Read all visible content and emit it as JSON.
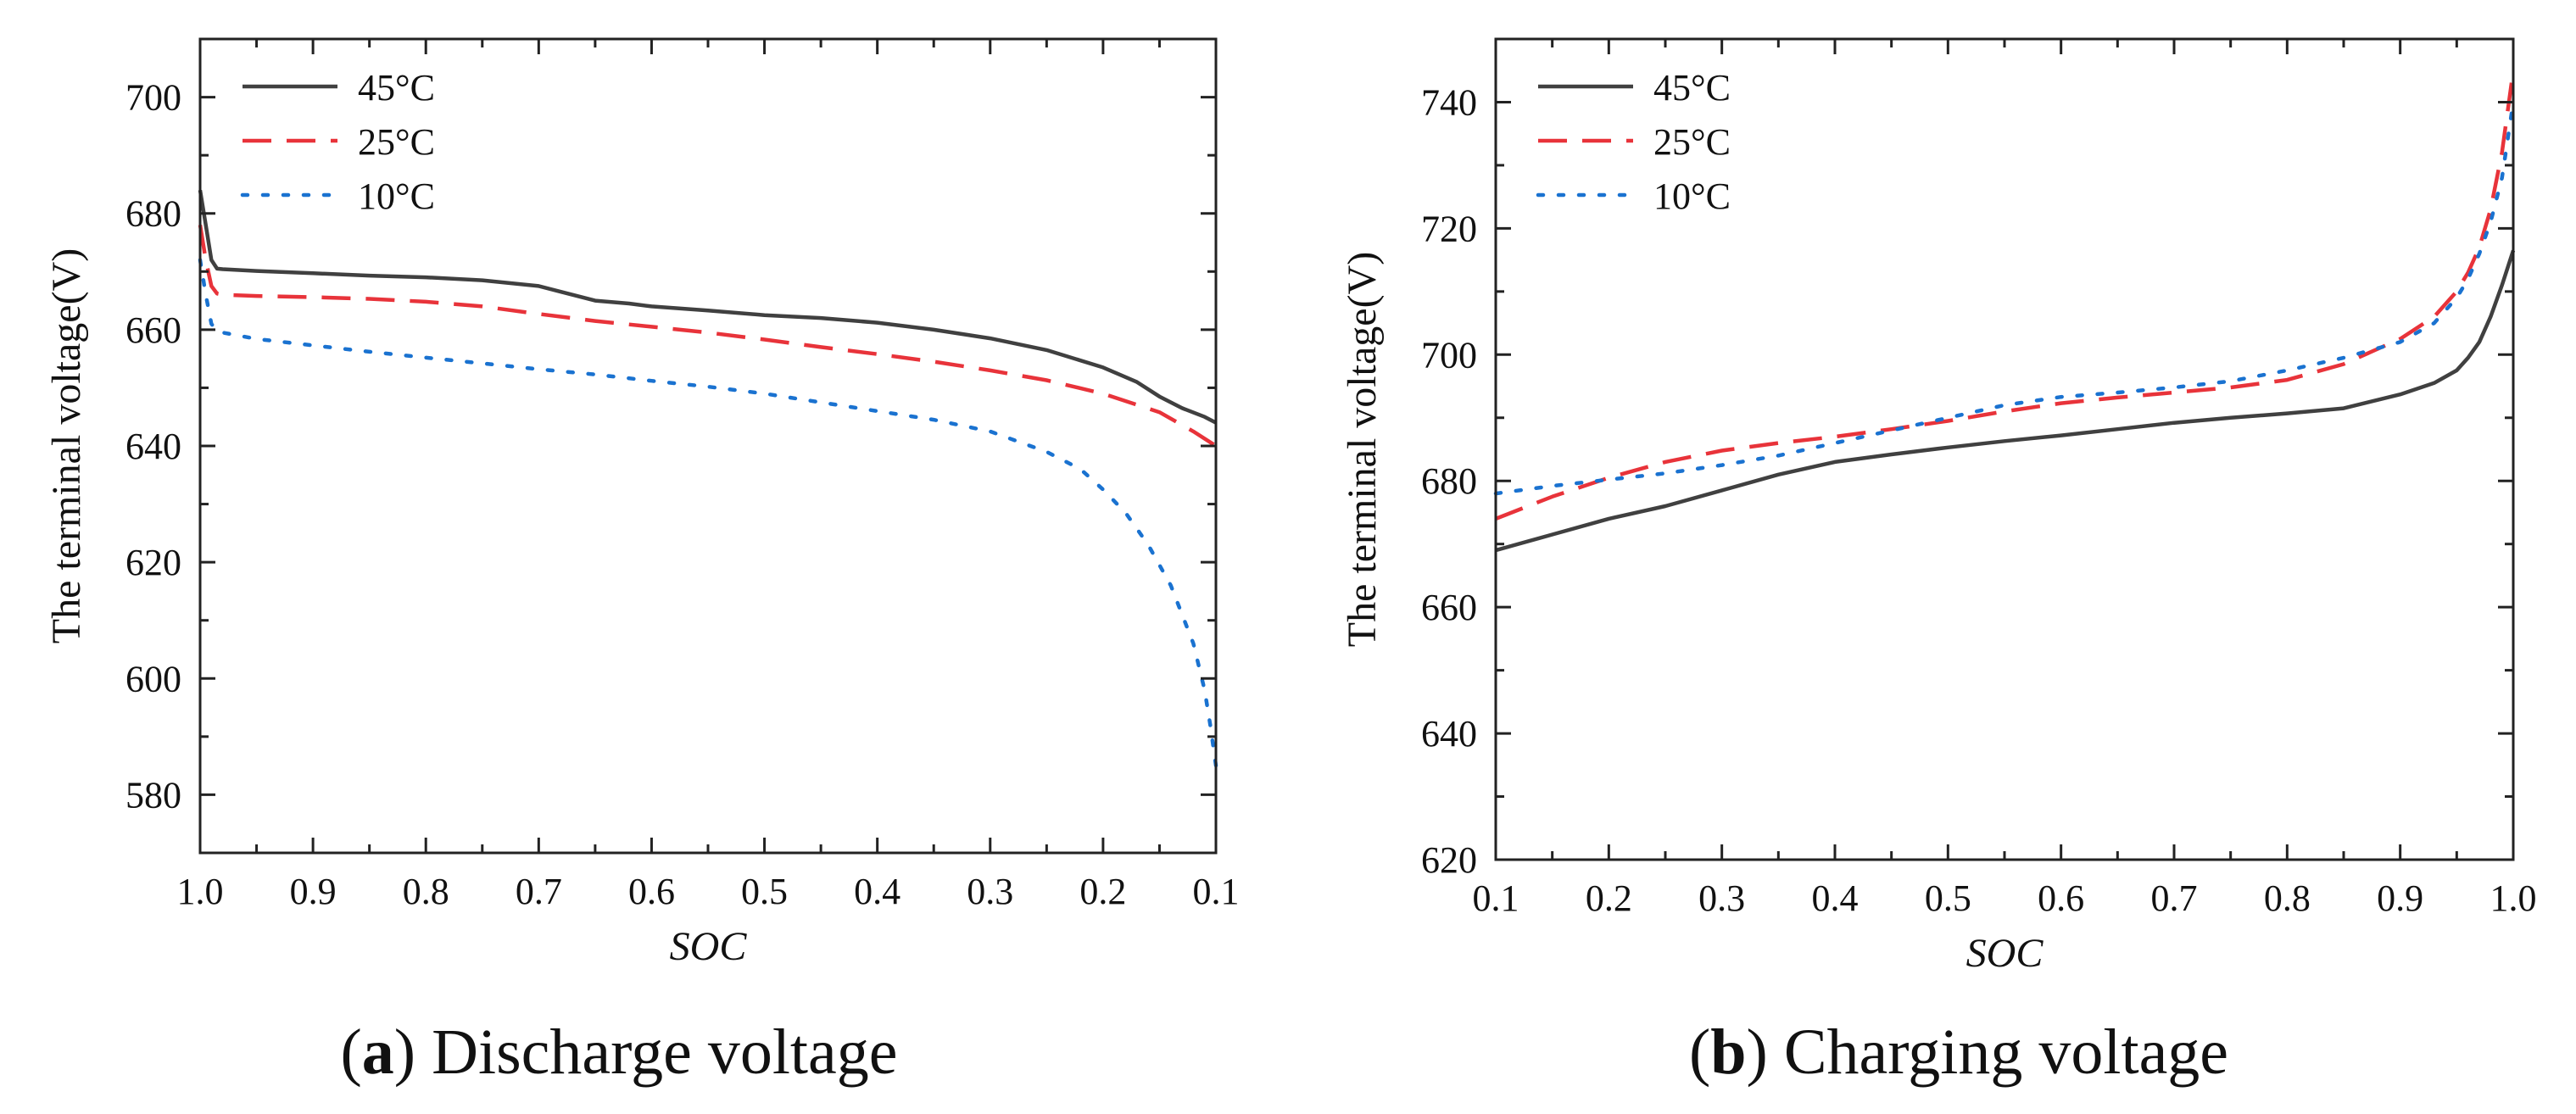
{
  "chart_data": [
    {
      "type": "line",
      "panel": "a",
      "caption_letter": "a",
      "caption_text": "Discharge voltage",
      "xlabel": "SOC",
      "ylabel": "The terminal voltage(V)",
      "xlim": [
        1.0,
        0.1
      ],
      "ylim": [
        570,
        710
      ],
      "xticks": [
        "1.0",
        "0.9",
        "0.8",
        "0.7",
        "0.6",
        "0.5",
        "0.4",
        "0.3",
        "0.2",
        "0.1"
      ],
      "yticks": [
        "580",
        "600",
        "620",
        "640",
        "660",
        "680",
        "700"
      ],
      "legend_position": "top-left",
      "series": [
        {
          "name": "45°C",
          "color": "#404040",
          "style": "solid",
          "x": [
            1.0,
            0.995,
            0.99,
            0.985,
            0.98,
            0.95,
            0.9,
            0.85,
            0.8,
            0.75,
            0.7,
            0.68,
            0.65,
            0.62,
            0.6,
            0.55,
            0.5,
            0.45,
            0.4,
            0.35,
            0.3,
            0.25,
            0.2,
            0.17,
            0.15,
            0.13,
            0.11,
            0.1
          ],
          "y": [
            684,
            678,
            672,
            670.5,
            670.4,
            670.1,
            669.7,
            669.3,
            669,
            668.5,
            667.5,
            666.5,
            665,
            664.5,
            664,
            663.3,
            662.5,
            662,
            661.2,
            660,
            658.5,
            656.5,
            653.5,
            651,
            648.5,
            646.5,
            645,
            644
          ]
        },
        {
          "name": "25°C",
          "color": "#e8333a",
          "style": "dashed",
          "x": [
            1.0,
            0.995,
            0.99,
            0.985,
            0.98,
            0.95,
            0.9,
            0.85,
            0.8,
            0.75,
            0.7,
            0.65,
            0.6,
            0.55,
            0.5,
            0.45,
            0.4,
            0.35,
            0.3,
            0.25,
            0.2,
            0.15,
            0.12,
            0.1
          ],
          "y": [
            678,
            672,
            667.5,
            666.2,
            666,
            665.8,
            665.6,
            665.3,
            664.8,
            664,
            662.7,
            661.5,
            660.5,
            659.5,
            658.3,
            657,
            655.8,
            654.5,
            653,
            651.3,
            649,
            645.8,
            642.5,
            640
          ]
        },
        {
          "name": "10°C",
          "color": "#1a72d0",
          "style": "dotted",
          "x": [
            1.0,
            0.995,
            0.99,
            0.985,
            0.98,
            0.95,
            0.9,
            0.85,
            0.8,
            0.75,
            0.7,
            0.65,
            0.6,
            0.55,
            0.5,
            0.45,
            0.4,
            0.35,
            0.3,
            0.25,
            0.22,
            0.2,
            0.18,
            0.16,
            0.14,
            0.12,
            0.11,
            0.105,
            0.1
          ],
          "y": [
            672,
            666,
            661,
            659.8,
            659.5,
            658.4,
            657.3,
            656.2,
            655.2,
            654.2,
            653.2,
            652.3,
            651.2,
            650.2,
            649,
            647.5,
            646,
            644.5,
            642.5,
            639,
            636,
            632.5,
            628.5,
            623,
            616,
            606,
            598,
            592,
            585
          ]
        }
      ]
    },
    {
      "type": "line",
      "panel": "b",
      "caption_letter": "b",
      "caption_text": "Charging voltage",
      "xlabel": "SOC",
      "ylabel": "The terminal voltage(V)",
      "xlim": [
        0.1,
        1.0
      ],
      "ylim": [
        620,
        750
      ],
      "xticks": [
        "0.1",
        "0.2",
        "0.3",
        "0.4",
        "0.5",
        "0.6",
        "0.7",
        "0.8",
        "0.9",
        "1.0"
      ],
      "yticks": [
        "620",
        "640",
        "660",
        "680",
        "700",
        "720",
        "740"
      ],
      "legend_position": "top-left",
      "series": [
        {
          "name": "45°C",
          "color": "#404040",
          "style": "solid",
          "x": [
            0.1,
            0.15,
            0.2,
            0.25,
            0.3,
            0.35,
            0.4,
            0.45,
            0.5,
            0.55,
            0.6,
            0.65,
            0.7,
            0.75,
            0.8,
            0.85,
            0.9,
            0.93,
            0.95,
            0.96,
            0.97,
            0.98,
            0.99,
            1.0
          ],
          "y": [
            669,
            671.5,
            674,
            676,
            678.5,
            681,
            683,
            684.2,
            685.3,
            686.3,
            687.2,
            688.2,
            689.2,
            690,
            690.7,
            691.5,
            693.7,
            695.5,
            697.5,
            699.5,
            702,
            706,
            711,
            716.5
          ]
        },
        {
          "name": "25°C",
          "color": "#e8333a",
          "style": "dashed",
          "x": [
            0.1,
            0.15,
            0.2,
            0.25,
            0.3,
            0.35,
            0.4,
            0.45,
            0.5,
            0.55,
            0.6,
            0.65,
            0.7,
            0.75,
            0.8,
            0.85,
            0.9,
            0.93,
            0.95,
            0.96,
            0.97,
            0.98,
            0.99,
            1.0
          ],
          "y": [
            674,
            677.5,
            680.5,
            683,
            684.8,
            686,
            687,
            688.2,
            689.5,
            691,
            692.3,
            693.2,
            694,
            694.8,
            696,
            698.5,
            702.5,
            706,
            710,
            713,
            717,
            723,
            732,
            745
          ]
        },
        {
          "name": "10°C",
          "color": "#1a72d0",
          "style": "dotted",
          "x": [
            0.1,
            0.15,
            0.2,
            0.25,
            0.3,
            0.35,
            0.4,
            0.45,
            0.5,
            0.55,
            0.6,
            0.65,
            0.7,
            0.75,
            0.8,
            0.85,
            0.9,
            0.93,
            0.95,
            0.96,
            0.97,
            0.98,
            0.99,
            1.0
          ],
          "y": [
            678,
            679.2,
            680.2,
            681.2,
            682.5,
            684,
            686,
            688,
            690,
            692,
            693.3,
            694,
            694.8,
            695.8,
            697.5,
            699.5,
            702,
            705,
            709,
            712,
            716,
            721,
            728,
            740
          ]
        }
      ]
    }
  ]
}
